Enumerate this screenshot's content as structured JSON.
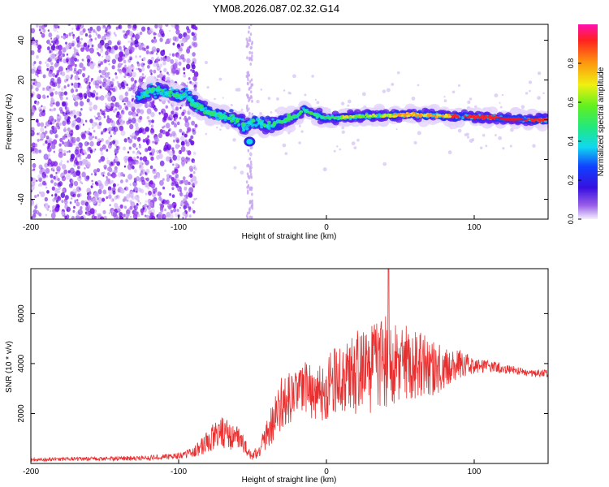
{
  "title": "YM08.2026.087.02.32.G14",
  "chart_data": [
    {
      "type": "heatmap",
      "name": "spectrogram",
      "xlabel": "Height of straight line (km)",
      "ylabel": "Frequency (Hz)",
      "xlim": [
        -200,
        150
      ],
      "ylim": [
        -50,
        48
      ],
      "xticks": [
        -200,
        -100,
        0,
        100
      ],
      "yticks": [
        -40,
        -20,
        0,
        20,
        40
      ],
      "ridge_frequency": {
        "x": [
          -125,
          -118,
          -110,
          -100,
          -95,
          -90,
          -80,
          -70,
          -60,
          -55,
          -50,
          -45,
          -40,
          -35,
          -30,
          -20,
          -15,
          -10,
          0,
          10,
          20,
          30,
          40,
          50,
          60,
          70,
          80,
          90,
          100,
          110,
          120,
          130,
          140,
          150
        ],
        "y": [
          12,
          15,
          14,
          12,
          13,
          8,
          4,
          2,
          0,
          -4,
          -1,
          -2,
          -3,
          -2,
          -1,
          2,
          5,
          3,
          1,
          1,
          1.5,
          2,
          2,
          2.5,
          2.5,
          2.2,
          2,
          1.8,
          1.5,
          1.2,
          0.5,
          0.2,
          0,
          0
        ],
        "note_interference_near_x": -52,
        "interference_freq": -11
      },
      "colorbar": {
        "label": "Normalized spectral amplitude",
        "range": [
          0.0,
          1.0
        ],
        "ticks": [
          0.0,
          0.2,
          0.4,
          0.6,
          0.8
        ],
        "tick_labels": [
          "0.0",
          "0.2",
          "0.4",
          "0.6",
          "0.8"
        ]
      }
    },
    {
      "type": "line",
      "name": "snr",
      "xlabel": "Height of straight line (km)",
      "ylabel": "SNR (10 * v/v)",
      "xlim": [
        -200,
        150
      ],
      "ylim": [
        0,
        7800
      ],
      "xticks": [
        -200,
        -100,
        0,
        100
      ],
      "yticks": [
        2000,
        4000,
        6000
      ],
      "color": "#e83030",
      "envelope": {
        "x": [
          -200,
          -160,
          -120,
          -100,
          -90,
          -80,
          -70,
          -60,
          -55,
          -50,
          -45,
          -40,
          -35,
          -30,
          -25,
          -20,
          -15,
          -10,
          -5,
          0,
          5,
          10,
          20,
          30,
          40,
          50,
          60,
          70,
          80,
          90,
          100,
          110,
          120,
          130,
          140,
          150
        ],
        "mean": [
          150,
          180,
          220,
          300,
          450,
          900,
          1300,
          1000,
          700,
          200,
          700,
          1200,
          1800,
          2500,
          2700,
          2800,
          3000,
          2800,
          2900,
          3000,
          3300,
          3400,
          3600,
          3800,
          4000,
          4000,
          4000,
          3800,
          3800,
          4000,
          3900,
          3900,
          3800,
          3700,
          3600,
          3600
        ],
        "spread": [
          80,
          80,
          100,
          120,
          200,
          500,
          700,
          500,
          300,
          150,
          400,
          600,
          900,
          1100,
          1100,
          900,
          1200,
          1100,
          1200,
          1300,
          1300,
          1400,
          1700,
          1800,
          1900,
          1700,
          1400,
          1200,
          900,
          600,
          300,
          250,
          200,
          150,
          150,
          150
        ]
      },
      "peak": {
        "x": 42,
        "y": 7800
      }
    }
  ]
}
